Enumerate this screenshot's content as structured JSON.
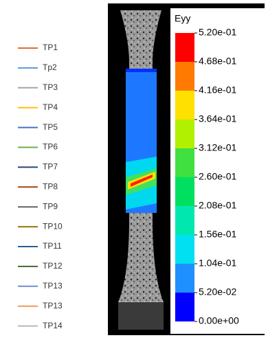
{
  "legend": {
    "items": [
      {
        "name": "TP1",
        "color": "#e36c2a"
      },
      {
        "name": "Tp2",
        "color": "#5b9bd5"
      },
      {
        "name": "TP3",
        "color": "#a5a5a5"
      },
      {
        "name": "TP4",
        "color": "#ffc000"
      },
      {
        "name": "TP5",
        "color": "#4472c4"
      },
      {
        "name": "TP6",
        "color": "#70ad47"
      },
      {
        "name": "TP7",
        "color": "#264478"
      },
      {
        "name": "TP8",
        "color": "#9e480e"
      },
      {
        "name": "TP9",
        "color": "#636363"
      },
      {
        "name": "TP10",
        "color": "#997300"
      },
      {
        "name": "TP11",
        "color": "#255e91"
      },
      {
        "name": "TP12",
        "color": "#43682b"
      },
      {
        "name": "TP13",
        "color": "#698ed0"
      },
      {
        "name": "TP13",
        "color": "#f1975a"
      },
      {
        "name": "TP14",
        "color": "#b7b7b7"
      }
    ]
  },
  "colorbar": {
    "title": "Eyy",
    "labels": [
      "5.20e-01",
      "4.68e-01",
      "4.16e-01",
      "3.64e-01",
      "3.12e-01",
      "2.60e-01",
      "2.08e-01",
      "1.56e-01",
      "1.04e-01",
      "5.20e-02",
      "0.00e+00"
    ]
  }
}
